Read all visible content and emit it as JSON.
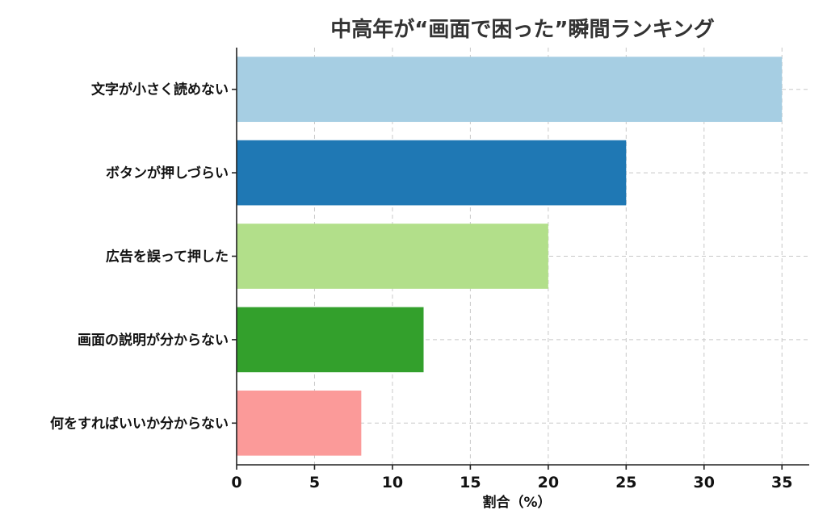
{
  "chart_data": {
    "type": "bar",
    "orientation": "horizontal",
    "title": "中高年が“画面で困った”瞬間ランキング",
    "xlabel": "割合（%）",
    "ylabel": "",
    "categories": [
      "文字が小さく読めない",
      "ボタンが押しづらい",
      "広告を誤って押した",
      "画面の説明が分からない",
      "何をすればいいか分からない"
    ],
    "values": [
      35,
      25,
      20,
      12,
      8
    ],
    "colors": [
      "#a6cee3",
      "#1f78b4",
      "#b2df8a",
      "#33a02c",
      "#fb9a99"
    ],
    "xlim": [
      0,
      36.75
    ],
    "xticks": [
      0,
      5,
      10,
      15,
      20,
      25,
      30,
      35
    ],
    "grid": true,
    "legend": "none"
  }
}
